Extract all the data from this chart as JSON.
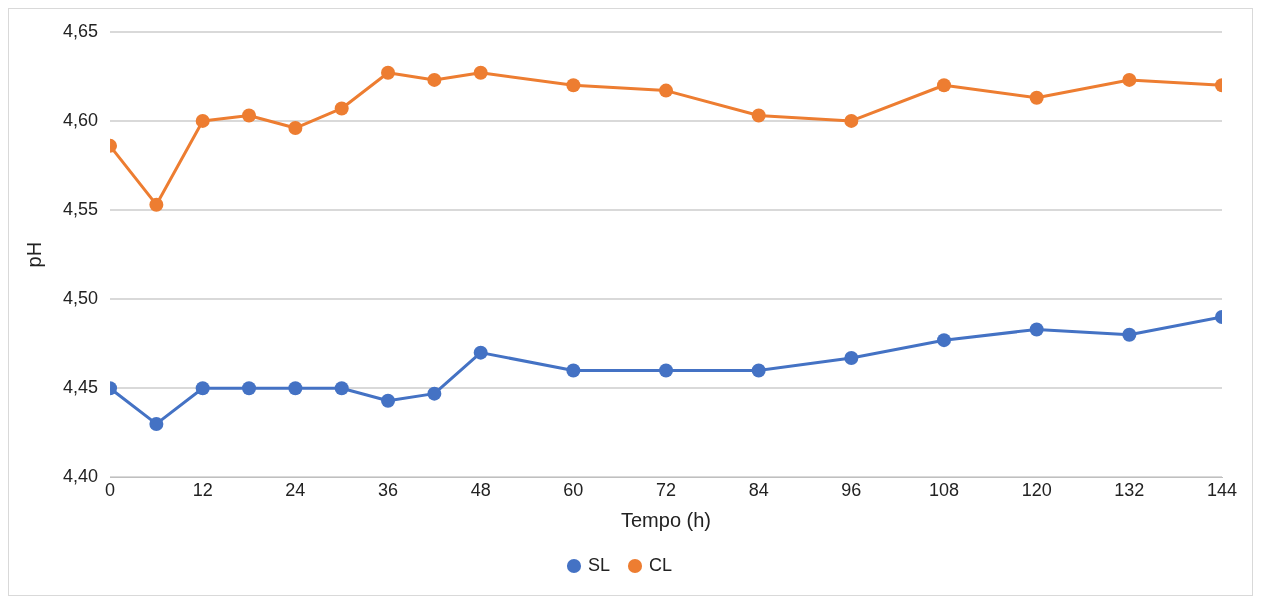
{
  "chart_data": {
    "type": "line",
    "xlabel": "Tempo (h)",
    "ylabel": "pH",
    "xlim": [
      0,
      144
    ],
    "xticks": [
      0,
      12,
      24,
      36,
      48,
      60,
      72,
      84,
      96,
      108,
      120,
      132,
      144
    ],
    "ylim": [
      4.4,
      4.65
    ],
    "yticks": [
      {
        "value": 4.4,
        "label": "4,40"
      },
      {
        "value": 4.45,
        "label": "4,45"
      },
      {
        "value": 4.5,
        "label": "4,50"
      },
      {
        "value": 4.55,
        "label": "4,55"
      },
      {
        "value": 4.6,
        "label": "4,60"
      },
      {
        "value": 4.65,
        "label": "4,65"
      }
    ],
    "x": [
      0,
      6,
      12,
      18,
      24,
      30,
      36,
      42,
      48,
      60,
      72,
      84,
      96,
      108,
      120,
      132,
      144
    ],
    "series": [
      {
        "name": "SL",
        "color": "#4472c4",
        "values": [
          4.45,
          4.43,
          4.45,
          4.45,
          4.45,
          4.45,
          4.443,
          4.447,
          4.47,
          4.46,
          4.46,
          4.46,
          4.467,
          4.477,
          4.483,
          4.48,
          4.49
        ]
      },
      {
        "name": "CL",
        "color": "#ed7d31",
        "values": [
          4.586,
          4.553,
          4.6,
          4.603,
          4.596,
          4.607,
          4.627,
          4.623,
          4.627,
          4.62,
          4.617,
          4.603,
          4.6,
          4.62,
          4.613,
          4.623,
          4.62
        ]
      }
    ],
    "grid": "y",
    "legend": "bottom",
    "marker": "circle",
    "line_style": "solid"
  }
}
